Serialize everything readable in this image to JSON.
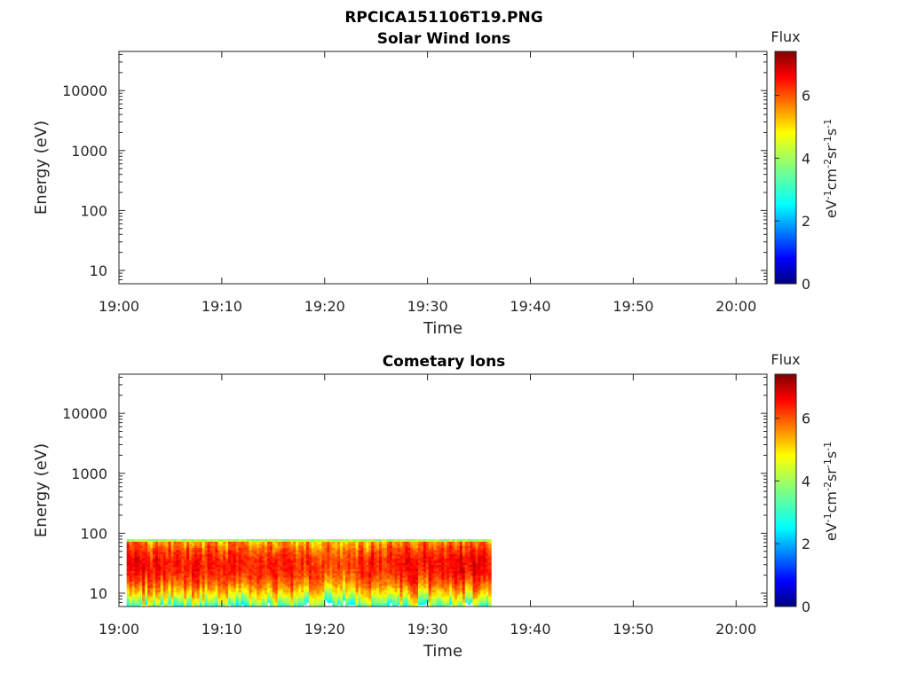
{
  "figure": {
    "title": "RPCICA151106T19.PNG"
  },
  "chart_data": [
    {
      "type": "heatmap",
      "title": "Solar Wind Ions",
      "xlabel": "Time",
      "ylabel": "Energy (eV)",
      "y_scale": "log",
      "x_ticks": [
        "19:00",
        "19:10",
        "19:20",
        "19:30",
        "19:40",
        "19:50",
        "20:00"
      ],
      "y_ticks": [
        "10",
        "100",
        "1000",
        "10000"
      ],
      "xlim": [
        "19:00",
        "20:03"
      ],
      "ylim": [
        6,
        45000
      ],
      "colorbar": {
        "title": "Flux",
        "label": "eV-1cm-2sr-1s-1",
        "ticks": [
          "0",
          "2",
          "4",
          "6"
        ],
        "range": [
          0,
          7.4
        ],
        "colormap": "jet"
      },
      "data": []
    },
    {
      "type": "heatmap",
      "title": "Cometary Ions",
      "xlabel": "Time",
      "ylabel": "Energy (eV)",
      "y_scale": "log",
      "x_ticks": [
        "19:00",
        "19:10",
        "19:20",
        "19:30",
        "19:40",
        "19:50",
        "20:00"
      ],
      "y_ticks": [
        "10",
        "100",
        "1000",
        "10000"
      ],
      "xlim": [
        "19:00",
        "20:03"
      ],
      "ylim": [
        6,
        45000
      ],
      "colorbar": {
        "title": "Flux",
        "label": "eV-1cm-2sr-1s-1",
        "ticks": [
          "0",
          "2",
          "4",
          "6"
        ],
        "range": [
          0,
          7.4
        ],
        "colormap": "jet"
      },
      "data": {
        "time_start": "19:00:45",
        "time_end": "19:36:10",
        "energy_range_eV": [
          6,
          80
        ],
        "peak_energy_eV": 30,
        "peak_flux": 6.8,
        "note_values": [
          {
            "time": "19:03",
            "peak_flux": 7.0
          },
          {
            "time": "19:10",
            "peak_flux": 6.9
          },
          {
            "time": "19:20",
            "peak_flux": 6.6
          },
          {
            "time": "19:30",
            "peak_flux": 7.0
          },
          {
            "time": "19:33",
            "peak_flux": 7.1
          }
        ]
      }
    }
  ]
}
